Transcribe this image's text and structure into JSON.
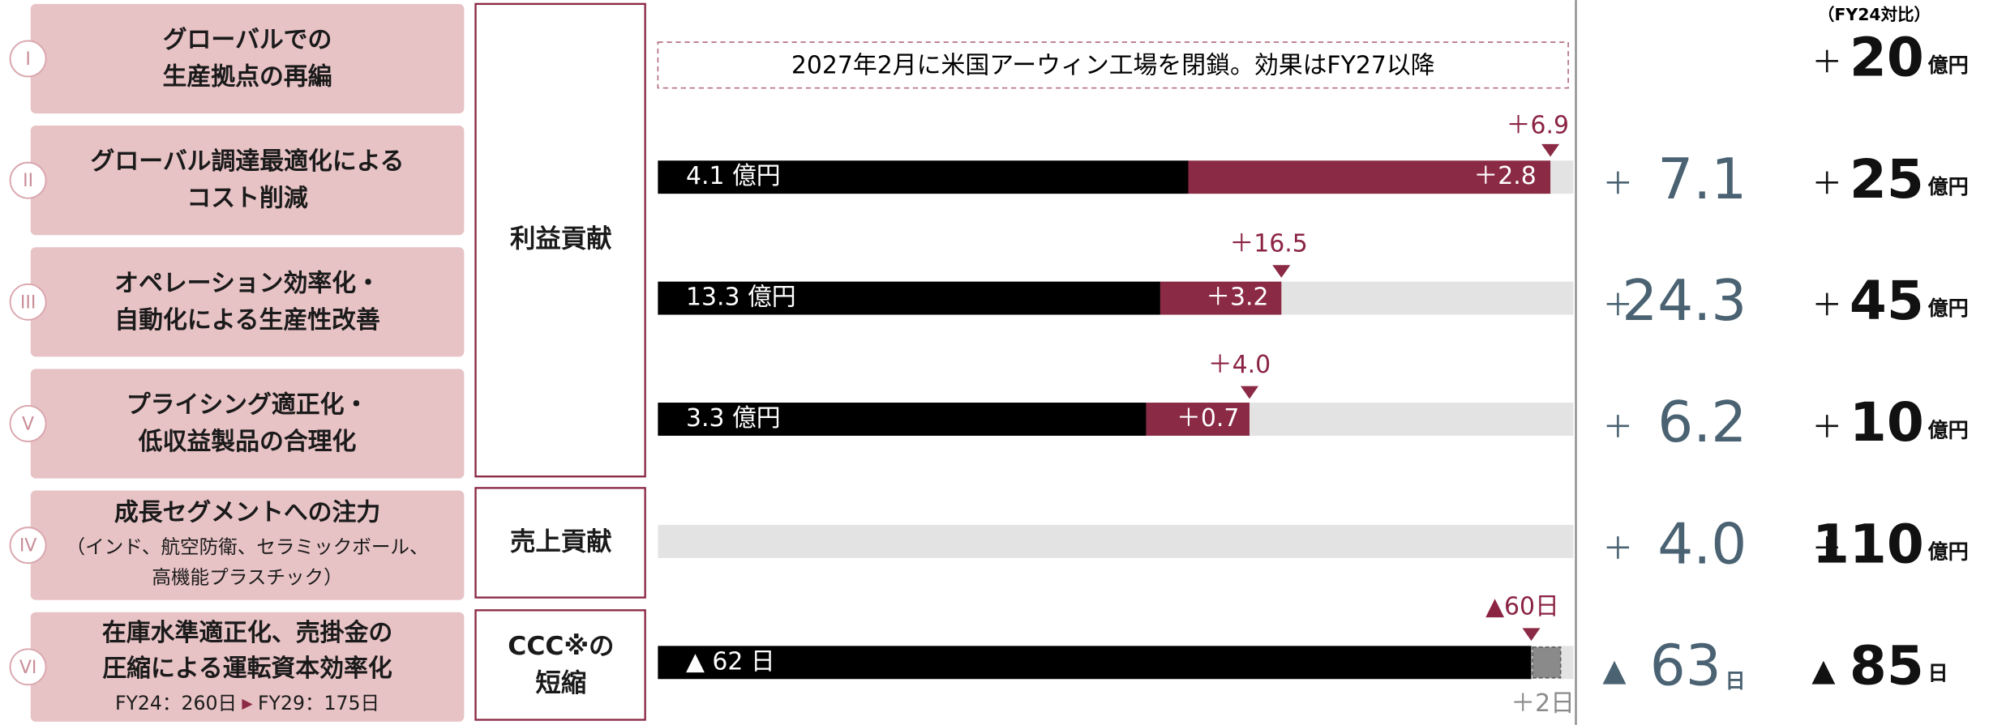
{
  "header": {
    "fy_note": "（FY24対比）"
  },
  "banner": "2027年2月に米国アーウィン工場を閉鎖。効果はFY27以降",
  "groups": [
    {
      "label": [
        "利益貢献"
      ]
    },
    {
      "label": [
        "売上貢献"
      ]
    },
    {
      "label": [
        "CCC※の",
        "短縮"
      ]
    }
  ],
  "rows": [
    {
      "numeral": "I",
      "title": [
        "グローバルでの",
        "生産拠点の再編"
      ],
      "target_sign": "＋",
      "target_value": "20",
      "target_unit": "億円"
    },
    {
      "numeral": "II",
      "title": [
        "グローバル調達最適化による",
        "コスト削減"
      ],
      "bar_base": "4.1 億円",
      "bar_add": "＋2.8",
      "marker": "＋6.9",
      "effect_sign": "＋",
      "effect_value": "7.1",
      "target_sign": "＋",
      "target_value": "25",
      "target_unit": "億円"
    },
    {
      "numeral": "III",
      "title": [
        "オペレーション効率化・",
        "自動化による生産性改善"
      ],
      "bar_base": "13.3 億円",
      "bar_add": "＋3.2",
      "marker": "＋16.5",
      "effect_sign": "＋",
      "effect_value": "24.3",
      "target_sign": "＋",
      "target_value": "45",
      "target_unit": "億円"
    },
    {
      "numeral": "V",
      "title": [
        "プライシング適正化・",
        "低収益製品の合理化"
      ],
      "bar_base": "3.3 億円",
      "bar_add": "＋0.7",
      "marker": "＋4.0",
      "effect_sign": "＋",
      "effect_value": "6.2",
      "target_sign": "＋",
      "target_value": "10",
      "target_unit": "億円"
    },
    {
      "numeral": "IV",
      "title": [
        "成長セグメントへの注力"
      ],
      "sub": [
        "（インド、航空防衛、セラミックボール、",
        "高機能プラスチック）"
      ],
      "effect_sign": "＋",
      "effect_value": "4.0",
      "target_sign": "＋",
      "target_value": "110",
      "target_unit": "億円"
    },
    {
      "numeral": "VI",
      "title": [
        "在庫水準適正化、売掛金の",
        "圧縮による運転資本効率化"
      ],
      "sub": [
        "FY24：260日",
        "▶",
        "FY29：175日"
      ],
      "bar_base": "▲ 62 日",
      "bar_add": "＋2日",
      "marker": "▲60日",
      "effect_sign": "▲",
      "effect_value": "63",
      "effect_unit": "日",
      "target_sign": "▲",
      "target_value": "85",
      "target_unit": "日"
    }
  ]
}
